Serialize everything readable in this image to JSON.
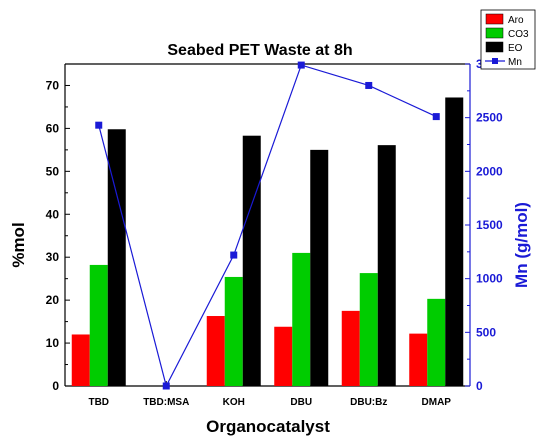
{
  "chart_data": {
    "type": "bar",
    "title": "Seabed PET Waste at 8h",
    "xlabel": "Organocatalyst",
    "ylabel": "%mol",
    "y2label": "Mn (g/mol)",
    "categories": [
      "TBD",
      "TBD:MSA",
      "KOH",
      "DBU",
      "DBU:Bz",
      "DMAP"
    ],
    "ylim": [
      0,
      75
    ],
    "yticks": [
      "0",
      "10",
      "20",
      "30",
      "40",
      "50",
      "60",
      "70"
    ],
    "y2lim": [
      0,
      3000
    ],
    "y2ticks": [
      "0",
      "500",
      "1000",
      "1500",
      "2000",
      "2500",
      "3000"
    ],
    "legend_position": "top-right",
    "series": [
      {
        "name": "Aro",
        "type": "bar",
        "axis": "left",
        "color": "#ff0000",
        "values": [
          12,
          0,
          16.3,
          13.8,
          17.5,
          12.2
        ]
      },
      {
        "name": "CO3",
        "type": "bar",
        "axis": "left",
        "color": "#00cc00",
        "values": [
          28.2,
          0,
          25.4,
          31,
          26.3,
          20.3
        ]
      },
      {
        "name": "EO",
        "type": "bar",
        "axis": "left",
        "color": "#000000",
        "values": [
          59.8,
          0,
          58.3,
          55,
          56.1,
          67.2
        ]
      },
      {
        "name": "Mn",
        "type": "line",
        "axis": "right",
        "color": "#1a1ad6",
        "values": [
          2430,
          0,
          1220,
          2990,
          2800,
          2510
        ]
      }
    ]
  }
}
